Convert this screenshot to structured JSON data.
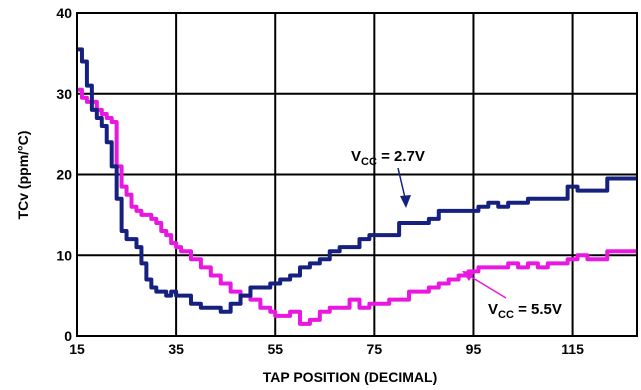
{
  "chart_data": {
    "type": "line",
    "title": "",
    "xlabel": "TAP POSITION (DECIMAL)",
    "ylabel": "TCv (ppm/°C)",
    "xlim": [
      15,
      128
    ],
    "ylim": [
      0,
      40
    ],
    "xticks": [
      15,
      35,
      55,
      75,
      95,
      115
    ],
    "yticks": [
      0,
      10,
      20,
      30,
      40
    ],
    "grid": true,
    "legend": "none",
    "series": [
      {
        "color": "#16207e",
        "x": [
          15,
          16,
          17,
          18,
          19,
          20,
          21,
          22,
          23,
          24,
          25,
          26,
          27,
          28,
          29,
          30,
          31,
          32,
          33,
          34,
          35,
          36,
          38,
          40,
          42,
          44,
          46,
          48,
          50,
          52,
          54,
          55,
          56,
          58,
          60,
          62,
          64,
          66,
          68,
          70,
          72,
          74,
          76,
          78,
          80,
          82,
          84,
          86,
          88,
          90,
          92,
          94,
          96,
          98,
          100,
          102,
          104,
          106,
          108,
          110,
          112,
          114,
          116,
          118,
          120,
          122,
          124,
          126,
          128
        ],
        "values": [
          35.5,
          34,
          31,
          28,
          27,
          26,
          24,
          21,
          17,
          13,
          12,
          12,
          11,
          9,
          7,
          6,
          5.5,
          5.5,
          5,
          5.5,
          5,
          5,
          4,
          3.5,
          3.5,
          3,
          4,
          5,
          6,
          6,
          6.5,
          6.5,
          7,
          7.5,
          8.5,
          9,
          9.5,
          10.5,
          11,
          11,
          12,
          12.5,
          12.5,
          12.5,
          14,
          14,
          14,
          14.5,
          15.5,
          15.5,
          15.5,
          15.5,
          16,
          16.5,
          16,
          16.5,
          16.5,
          17,
          17,
          17,
          17,
          18.5,
          18,
          18,
          18,
          19.5,
          19.5,
          19.5,
          19.5
        ]
      },
      {
        "color": "#e818e0",
        "x": [
          15,
          16,
          17,
          18,
          19,
          20,
          21,
          22,
          23,
          24,
          25,
          26,
          27,
          28,
          29,
          30,
          31,
          32,
          33,
          34,
          35,
          36,
          38,
          40,
          42,
          44,
          46,
          48,
          50,
          52,
          54,
          55,
          56,
          58,
          60,
          62,
          64,
          66,
          68,
          70,
          72,
          74,
          76,
          78,
          80,
          82,
          84,
          86,
          88,
          90,
          92,
          94,
          96,
          98,
          100,
          102,
          104,
          106,
          108,
          110,
          112,
          114,
          116,
          118,
          120,
          122,
          124,
          126,
          128
        ],
        "values": [
          30.5,
          29.5,
          29,
          29,
          28,
          27.5,
          27,
          26.5,
          21,
          18.5,
          17.5,
          16,
          15.5,
          15,
          15,
          14.5,
          14,
          13,
          12.5,
          11.5,
          11,
          10.5,
          9.5,
          8.5,
          7.5,
          6.5,
          5.5,
          5,
          4.5,
          3.5,
          3,
          2.5,
          2.5,
          3,
          1.5,
          2,
          3,
          3.5,
          3.5,
          4.5,
          3.5,
          4,
          4,
          4.5,
          4.5,
          5.5,
          5.5,
          6,
          6.5,
          7,
          7.5,
          8,
          8.5,
          8.5,
          8.5,
          9,
          8.5,
          9,
          8.5,
          9,
          9,
          9.5,
          10,
          9.5,
          9.5,
          10.5,
          10.5,
          10.5,
          10.5
        ]
      }
    ],
    "annotations": [
      {
        "main": "V",
        "sub": "CC",
        "rest": " = 2.7V"
      },
      {
        "main": "V",
        "sub": "CC",
        "rest": " = 5.5V"
      }
    ]
  }
}
